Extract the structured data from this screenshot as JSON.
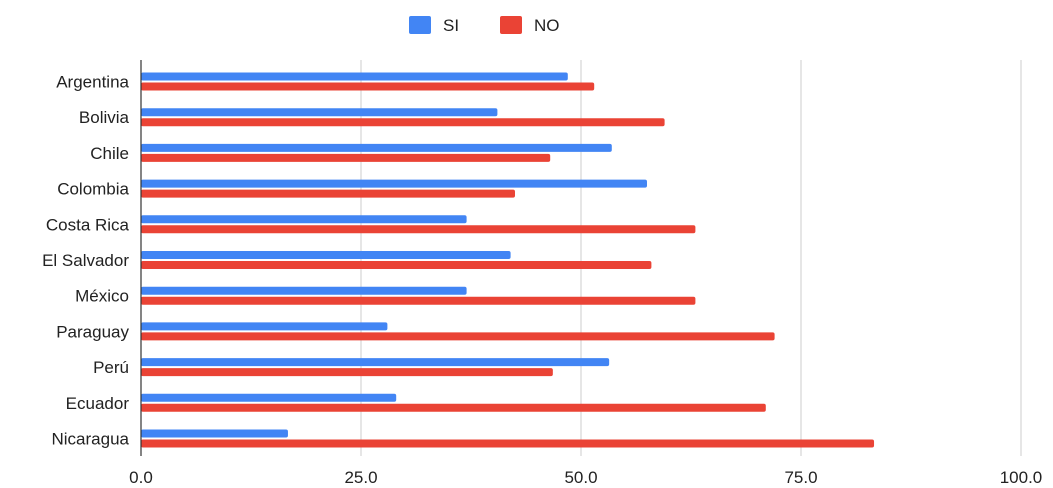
{
  "chart_data": {
    "type": "bar",
    "orientation": "horizontal",
    "categories": [
      "Argentina",
      "Bolivia",
      "Chile",
      "Colombia",
      "Costa Rica",
      "El Salvador",
      "México",
      "Paraguay",
      "Perú",
      "Ecuador",
      "Nicaragua"
    ],
    "series": [
      {
        "name": "SI",
        "color": "#4285f4",
        "values": [
          48.5,
          40.5,
          53.5,
          57.5,
          37.0,
          42.0,
          37.0,
          28.0,
          53.2,
          29.0,
          16.7
        ]
      },
      {
        "name": "NO",
        "color": "#ea4335",
        "values": [
          51.5,
          59.5,
          46.5,
          42.5,
          63.0,
          58.0,
          63.0,
          72.0,
          46.8,
          71.0,
          83.3
        ]
      }
    ],
    "x_ticks": [
      "0.0",
      "25.0",
      "50.0",
      "75.0",
      "100.0"
    ],
    "xlim": [
      0,
      100
    ],
    "title": "",
    "xlabel": "",
    "ylabel": "",
    "grid": true,
    "legend_position": "top-center"
  }
}
